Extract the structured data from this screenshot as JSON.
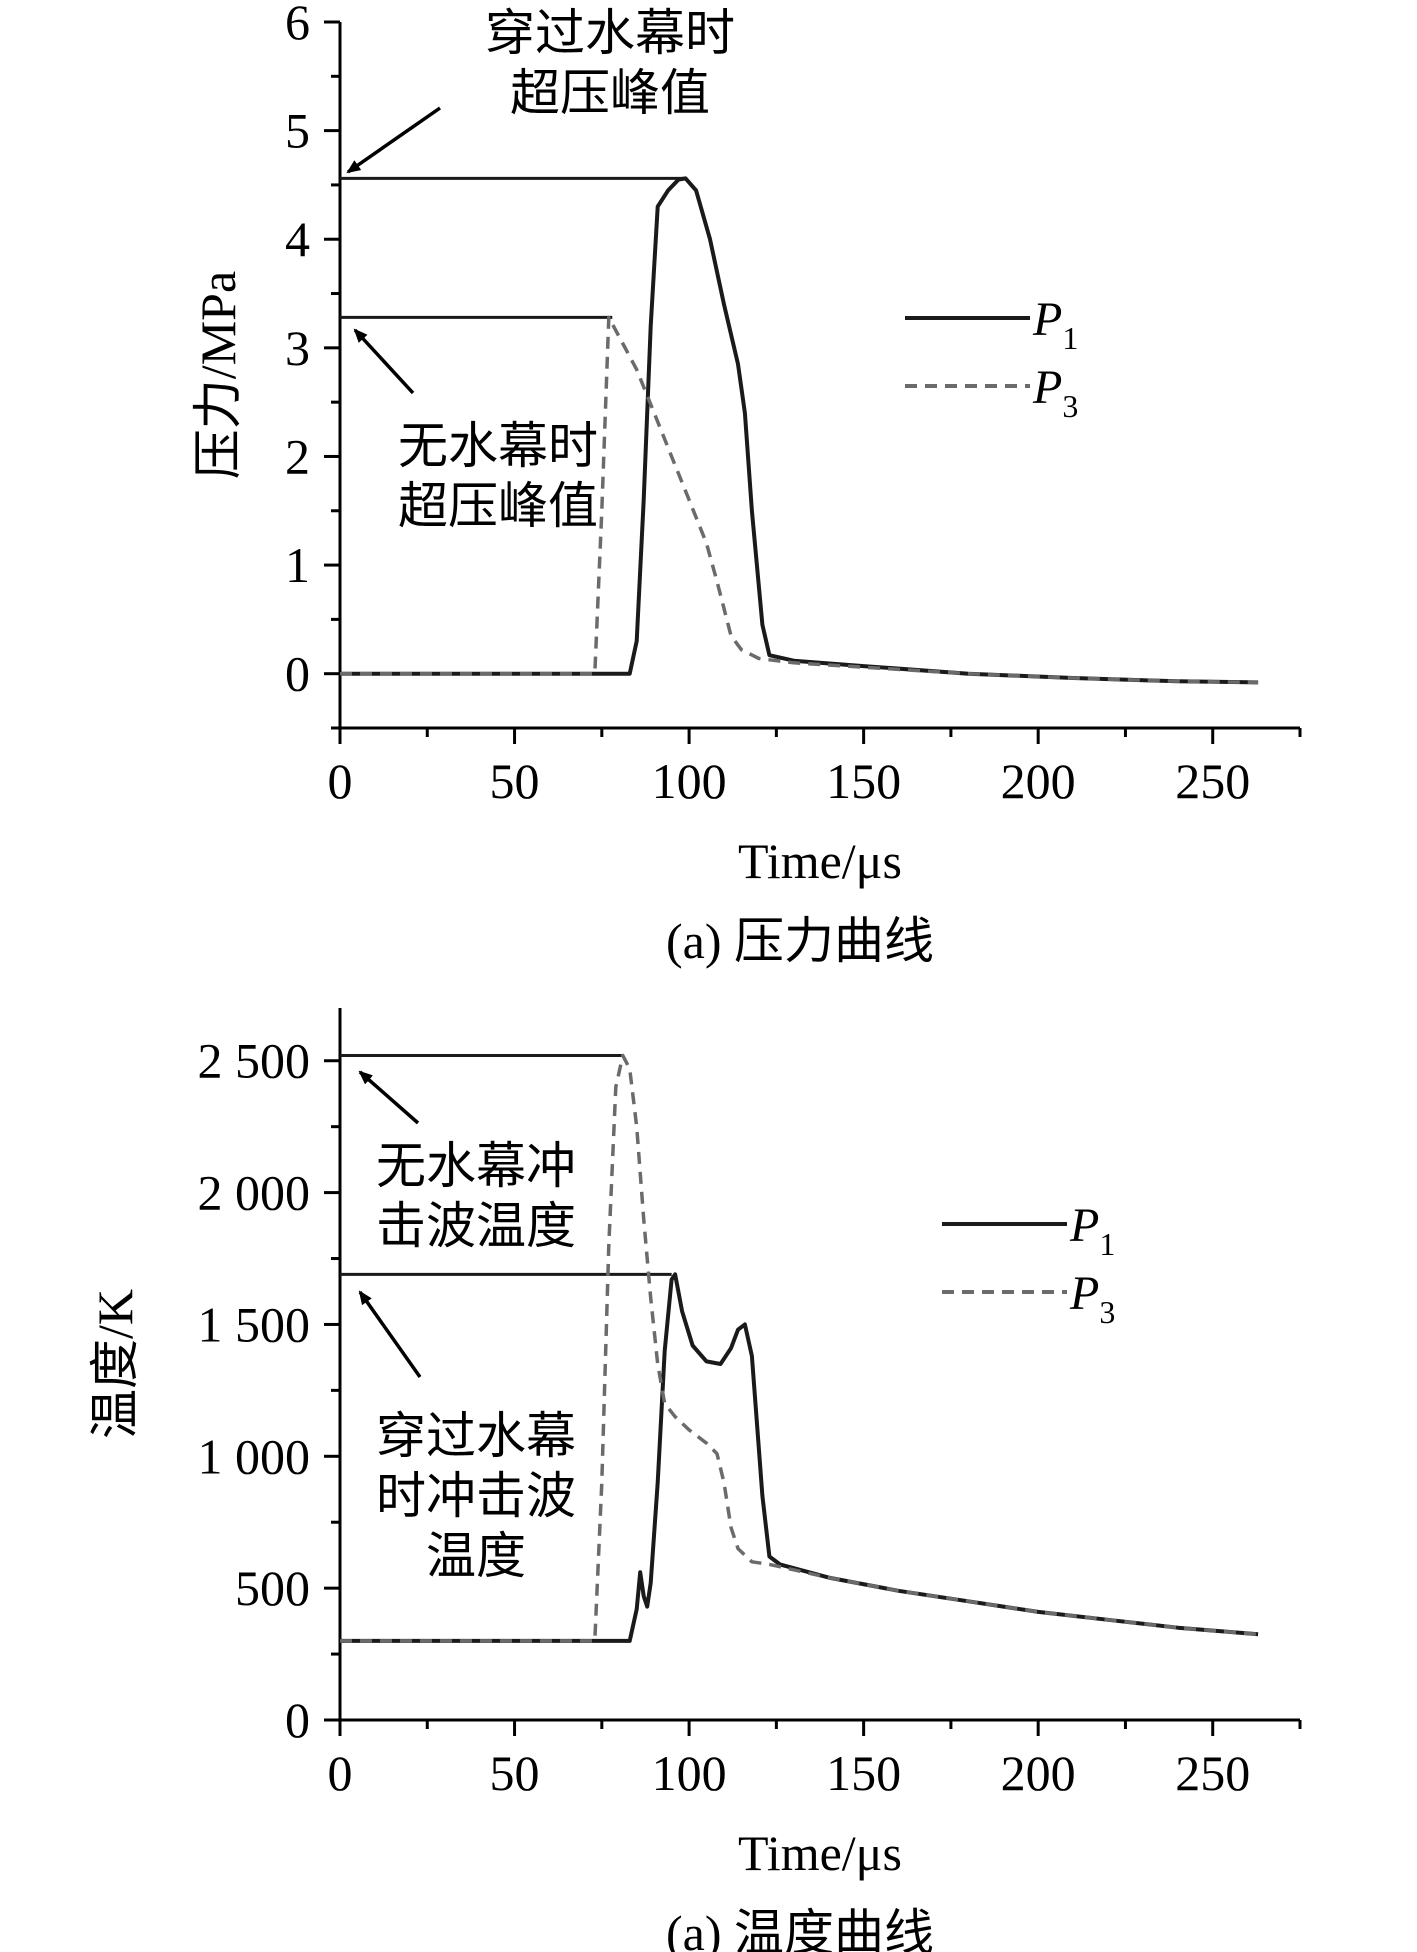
{
  "colors": {
    "p1": "#1a1a1a",
    "p3": "#6b6b6b",
    "axis": "#000000",
    "background": "#ffffff"
  },
  "chart_data": [
    {
      "type": "line",
      "caption": "(a) 压力曲线",
      "xlabel": "Time/μs",
      "ylabel": "压力/MPa",
      "xlim": [
        0,
        275
      ],
      "ylim": [
        -0.5,
        6
      ],
      "xticks": [
        0,
        50,
        100,
        150,
        200,
        250
      ],
      "xtick_labels": [
        "0",
        "50",
        "100",
        "150",
        "200",
        "250"
      ],
      "yticks": [
        0,
        1,
        2,
        3,
        4,
        5,
        6
      ],
      "ytick_labels": [
        "0",
        "1",
        "2",
        "3",
        "4",
        "5",
        "6"
      ],
      "grid": false,
      "legend_position": "right",
      "series": [
        {
          "name": "P",
          "subscript": "1",
          "style": "solid",
          "points": [
            [
              0,
              0
            ],
            [
              83,
              0
            ],
            [
              85,
              0.3
            ],
            [
              87,
              1.6
            ],
            [
              89,
              3.2
            ],
            [
              91,
              4.3
            ],
            [
              94,
              4.45
            ],
            [
              97,
              4.55
            ],
            [
              99,
              4.56
            ],
            [
              102,
              4.45
            ],
            [
              106,
              4.0
            ],
            [
              110,
              3.4
            ],
            [
              114,
              2.85
            ],
            [
              116,
              2.4
            ],
            [
              118,
              1.5
            ],
            [
              121,
              0.45
            ],
            [
              123,
              0.17
            ],
            [
              130,
              0.12
            ],
            [
              150,
              0.07
            ],
            [
              180,
              0.0
            ],
            [
              210,
              -0.04
            ],
            [
              240,
              -0.07
            ],
            [
              263,
              -0.08
            ]
          ]
        },
        {
          "name": "P",
          "subscript": "3",
          "style": "dashed",
          "points": [
            [
              0,
              0
            ],
            [
              73,
              0
            ],
            [
              75,
              1.5
            ],
            [
              77,
              3.28
            ],
            [
              80,
              3.1
            ],
            [
              85,
              2.8
            ],
            [
              90,
              2.4
            ],
            [
              95,
              2.0
            ],
            [
              100,
              1.6
            ],
            [
              105,
              1.2
            ],
            [
              108,
              0.85
            ],
            [
              110,
              0.6
            ],
            [
              112,
              0.35
            ],
            [
              115,
              0.22
            ],
            [
              120,
              0.14
            ],
            [
              130,
              0.1
            ],
            [
              150,
              0.06
            ],
            [
              180,
              0.0
            ],
            [
              210,
              -0.04
            ],
            [
              240,
              -0.07
            ],
            [
              263,
              -0.08
            ]
          ]
        }
      ],
      "reference_lines": [
        {
          "y": 4.56,
          "x_end": 99,
          "style": "solid"
        },
        {
          "y": 3.28,
          "x_end": 78,
          "style": "solid"
        }
      ],
      "annotations": [
        {
          "id": "through-peak",
          "lines": [
            "穿过水幕时",
            "超压峰值"
          ]
        },
        {
          "id": "no-curtain-peak",
          "lines": [
            "无水幕时",
            "超压峰值"
          ]
        }
      ]
    },
    {
      "type": "line",
      "caption": "(a) 温度曲线",
      "xlabel": "Time/μs",
      "ylabel": "温度/K",
      "xlim": [
        0,
        275
      ],
      "ylim": [
        0,
        2700
      ],
      "xticks": [
        0,
        50,
        100,
        150,
        200,
        250
      ],
      "xtick_labels": [
        "0",
        "50",
        "100",
        "150",
        "200",
        "250"
      ],
      "yticks": [
        0,
        500,
        1000,
        1500,
        2000,
        2500
      ],
      "ytick_labels": [
        "0",
        "500",
        "1 000",
        "1 500",
        "2 000",
        "2 500"
      ],
      "grid": false,
      "legend_position": "right",
      "series": [
        {
          "name": "P",
          "subscript": "1",
          "style": "solid",
          "points": [
            [
              0,
              300
            ],
            [
              83,
              300
            ],
            [
              85,
              420
            ],
            [
              86,
              560
            ],
            [
              87,
              470
            ],
            [
              88,
              430
            ],
            [
              89,
              520
            ],
            [
              91,
              900
            ],
            [
              93,
              1400
            ],
            [
              95,
              1670
            ],
            [
              96,
              1690
            ],
            [
              98,
              1550
            ],
            [
              101,
              1420
            ],
            [
              105,
              1360
            ],
            [
              109,
              1350
            ],
            [
              112,
              1410
            ],
            [
              114,
              1480
            ],
            [
              116,
              1500
            ],
            [
              118,
              1380
            ],
            [
              121,
              850
            ],
            [
              123,
              620
            ],
            [
              126,
              590
            ],
            [
              140,
              540
            ],
            [
              160,
              490
            ],
            [
              180,
              450
            ],
            [
              200,
              410
            ],
            [
              220,
              380
            ],
            [
              240,
              350
            ],
            [
              263,
              325
            ]
          ]
        },
        {
          "name": "P",
          "subscript": "3",
          "style": "dashed",
          "points": [
            [
              0,
              300
            ],
            [
              73,
              300
            ],
            [
              75,
              900
            ],
            [
              77,
              1800
            ],
            [
              79,
              2400
            ],
            [
              81,
              2520
            ],
            [
              83,
              2470
            ],
            [
              85,
              2250
            ],
            [
              87,
              1900
            ],
            [
              89,
              1600
            ],
            [
              91,
              1350
            ],
            [
              93,
              1200
            ],
            [
              96,
              1150
            ],
            [
              100,
              1100
            ],
            [
              105,
              1050
            ],
            [
              108,
              1010
            ],
            [
              110,
              900
            ],
            [
              112,
              730
            ],
            [
              114,
              650
            ],
            [
              118,
              600
            ],
            [
              123,
              590
            ],
            [
              140,
              540
            ],
            [
              160,
              490
            ],
            [
              180,
              450
            ],
            [
              200,
              410
            ],
            [
              220,
              380
            ],
            [
              240,
              350
            ],
            [
              263,
              325
            ]
          ]
        }
      ],
      "reference_lines": [
        {
          "y": 2520,
          "x_end": 81,
          "style": "solid"
        },
        {
          "y": 1690,
          "x_end": 95,
          "style": "solid"
        }
      ],
      "annotations": [
        {
          "id": "no-curtain-temp",
          "lines": [
            "无水幕冲",
            "击波温度"
          ]
        },
        {
          "id": "through-temp",
          "lines": [
            "穿过水幕",
            "时冲击波",
            "温度"
          ]
        }
      ]
    }
  ]
}
